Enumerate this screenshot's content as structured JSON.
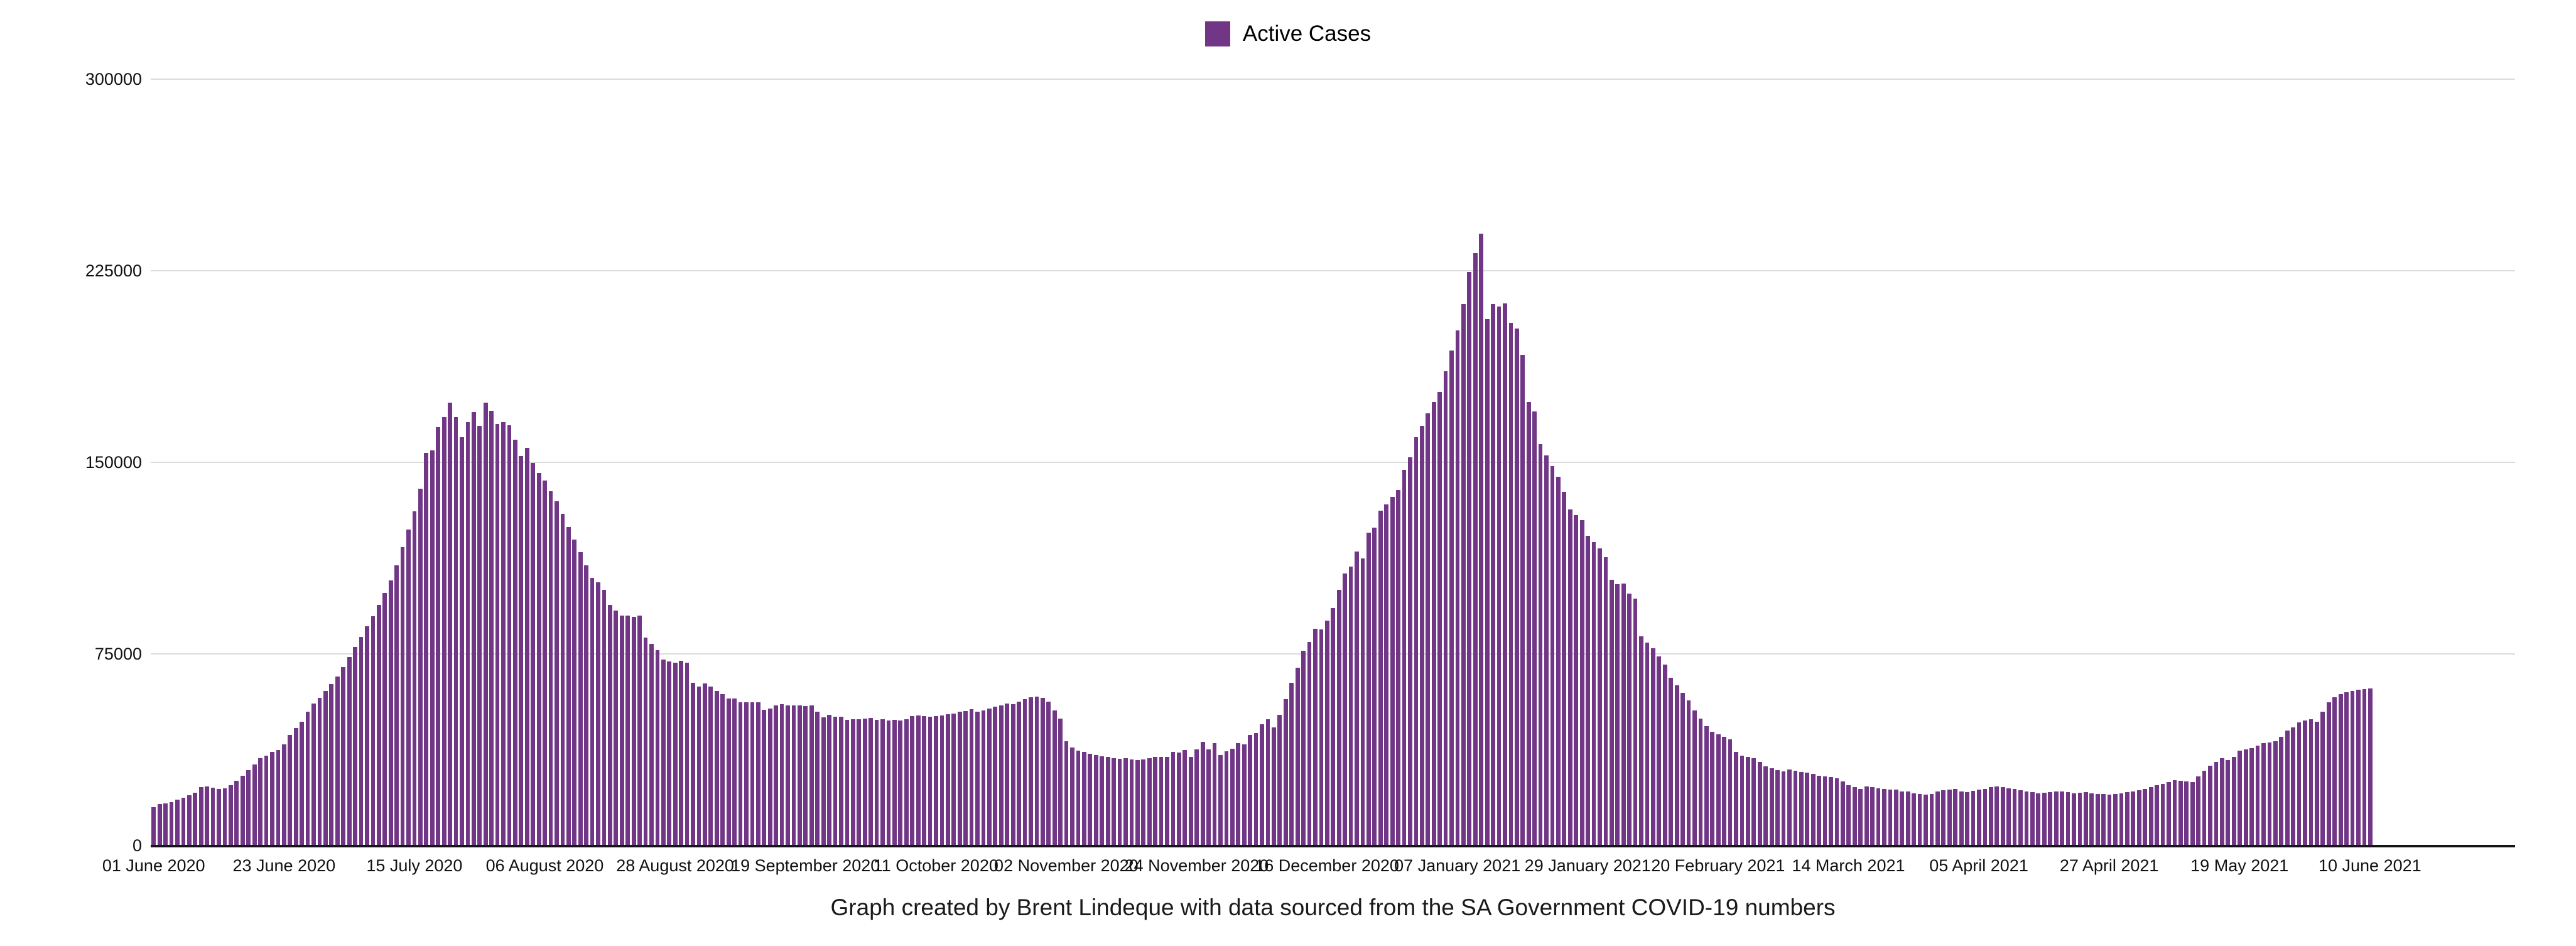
{
  "legend": {
    "label": "Active Cases",
    "swatch_color": "#713685"
  },
  "caption": "Graph created by Brent Lindeque with data sourced from the SA Government COVID-19 numbers",
  "chart_data": {
    "type": "bar",
    "title": "Active Cases",
    "series_name": "Active Cases",
    "bar_color": "#713685",
    "xlabel": "",
    "ylabel": "",
    "ylim": [
      0,
      300000
    ],
    "y_ticks": [
      0,
      75000,
      150000,
      225000,
      300000
    ],
    "grid": "horizontal",
    "legend_position": "top-center",
    "x_start_date": "01 June 2020",
    "x_end_date": "10 June 2021",
    "x_tick_every_n_bars": 22,
    "trailing_empty_slots": 24,
    "x_tick_labels": [
      "01 June 2020",
      "23 June 2020",
      "15 July 2020",
      "06 August 2020",
      "28 August 2020",
      "19 September 2020",
      "11 October 2020",
      "02 November 2020",
      "24 November 2020",
      "16 December 2020",
      "07 January 2021",
      "29 January 2021",
      "20 February 2021",
      "14 March 2021",
      "05 April 2021",
      "27 April 2021",
      "19 May 2021",
      "10 June 2021"
    ],
    "values": [
      15200,
      16500,
      16700,
      17200,
      18200,
      18900,
      19900,
      20900,
      23100,
      23400,
      22900,
      22400,
      22600,
      23900,
      25600,
      27500,
      29800,
      32000,
      34400,
      35400,
      36900,
      37600,
      39800,
      43500,
      46200,
      48700,
      52600,
      55800,
      58000,
      60700,
      63500,
      66500,
      70000,
      74000,
      78000,
      82000,
      86000,
      90000,
      94500,
      99000,
      104000,
      110000,
      117000,
      124000,
      131000,
      140000,
      154000,
      155000,
      164000,
      168000,
      173600,
      168000,
      160000,
      166000,
      170000,
      164500,
      173600,
      170400,
      165200,
      166000,
      164700,
      159100,
      152700,
      155900,
      150000,
      146000,
      143000,
      139000,
      135000,
      130000,
      125000,
      120000,
      115000,
      110000,
      105000,
      103300,
      100300,
      94400,
      92200,
      90200,
      90200,
      89800,
      90200,
      81600,
      79200,
      76700,
      73000,
      72300,
      71800,
      72500,
      71800,
      64000,
      62500,
      63700,
      62500,
      60700,
      59500,
      57800,
      57800,
      56300,
      56300,
      56300,
      56300,
      53400,
      53800,
      55100,
      55600,
      55100,
      55100,
      55000,
      54800,
      55100,
      52600,
      50400,
      51400,
      50700,
      50700,
      49400,
      49700,
      49700,
      49900,
      50200,
      49500,
      49700,
      49300,
      49500,
      49300,
      49700,
      50900,
      51100,
      50900,
      50700,
      50900,
      51100,
      51600,
      51900,
      52700,
      52900,
      53600,
      52600,
      53200,
      53800,
      54600,
      55000,
      55800,
      55500,
      56500,
      57500,
      58300,
      58500,
      58000,
      56500,
      53000,
      50000,
      41100,
      38600,
      37500,
      36800,
      36200,
      35600,
      35200,
      34800,
      34400,
      34200,
      34500,
      33900,
      33600,
      34000,
      34400,
      34900,
      34900,
      34900,
      36900,
      36600,
      37600,
      34900,
      37900,
      40800,
      37900,
      40300,
      35700,
      37100,
      38100,
      40300,
      39800,
      43500,
      44300,
      47700,
      49700,
      46500,
      51400,
      57500,
      63900,
      69800,
      76500,
      79900,
      85100,
      84800,
      88300,
      93200,
      100300,
      106700,
      109400,
      115300,
      112600,
      122700,
      124700,
      131300,
      133800,
      136700,
      139400,
      147300,
      152200,
      160100,
      164500,
      169400,
      173800,
      177800,
      186000,
      194000,
      202000,
      212200,
      224700,
      232100,
      239700,
      206300,
      212200,
      211200,
      212500,
      204800,
      202600,
      192300,
      173800,
      170200,
      157400,
      153000,
      148800,
      144600,
      138700,
      131800,
      129600,
      127600,
      121500,
      119000,
      116600,
      113100,
      104300,
      102500,
      102800,
      98800,
      96900,
      82100,
      79700,
      77500,
      74300,
      71000,
      66000,
      63000,
      60000,
      57000,
      53000,
      50000,
      47000,
      44800,
      43800,
      42800,
      41800,
      36900,
      35400,
      34900,
      34400,
      32900,
      31200,
      30500,
      29800,
      29300,
      30000,
      29500,
      29000,
      28700,
      28400,
      27500,
      27300,
      27000,
      26500,
      25300,
      23900,
      23100,
      22400,
      23400,
      23100,
      22700,
      22400,
      22100,
      22100,
      21400,
      21300,
      20700,
      20500,
      20200,
      20500,
      21400,
      21900,
      22100,
      22300,
      21400,
      21100,
      21700,
      22100,
      22500,
      23000,
      23300,
      23100,
      22700,
      22300,
      21900,
      21400,
      21100,
      20700,
      20900,
      21100,
      21300,
      21400,
      21100,
      20700,
      20900,
      21100,
      20700,
      20500,
      20300,
      20200,
      20400,
      20700,
      21100,
      21400,
      21900,
      22300,
      23100,
      23900,
      24300,
      25100,
      25900,
      25600,
      25400,
      25100,
      27300,
      29400,
      31400,
      33000,
      34400,
      33700,
      34900,
      37400,
      37900,
      38400,
      39300,
      40300,
      40600,
      41100,
      42800,
      45200,
      46500,
      48400,
      49200,
      49700,
      48700,
      52600,
      56300,
      58300,
      59400,
      60200,
      60800,
      61200,
      61500,
      61700
    ]
  }
}
